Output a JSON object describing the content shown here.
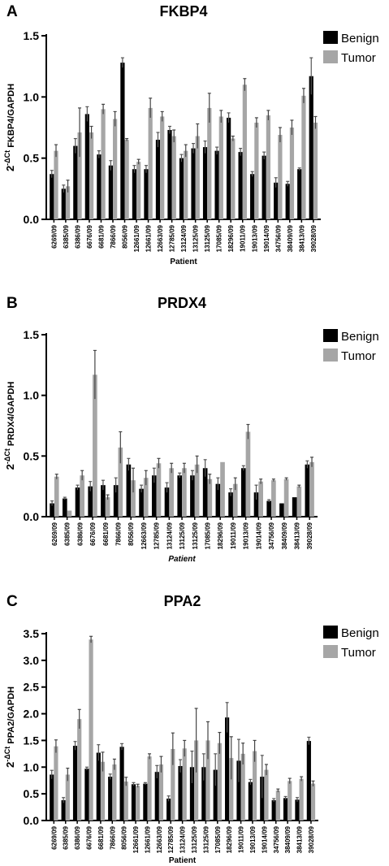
{
  "chart_data": [
    {
      "type": "bar",
      "panel": "A",
      "title": "FKBP4",
      "ylabel_prefix": "2",
      "ylabel_sup": "-ΔCt",
      "ylabel_rest": " FKBP4/GAPDH",
      "xlabel": "Patient",
      "ylim": [
        0,
        1.5
      ],
      "yticks": [
        "0.0",
        "0.5",
        "1.0",
        "1.5"
      ],
      "categories": [
        "6269/09",
        "6385/09",
        "6386/09",
        "6676/09",
        "6681/09",
        "7866/09",
        "8056/09",
        "12661/09",
        "12661/09",
        "12663/09",
        "12785/09",
        "13124/09",
        "13125/09",
        "13125/09",
        "17085/09",
        "18296/09",
        "19011/09",
        "19013/09",
        "19014/09",
        "34756/09",
        "38409/09",
        "38413/09",
        "39028/09"
      ],
      "series": [
        {
          "name": "Benign",
          "color": "#000000",
          "values": [
            0.37,
            0.25,
            0.6,
            0.86,
            0.53,
            0.44,
            1.28,
            0.41,
            0.41,
            0.65,
            0.73,
            0.5,
            0.58,
            0.59,
            0.56,
            0.83,
            0.55,
            0.37,
            0.52,
            0.3,
            0.29,
            0.41,
            1.17
          ],
          "errors": [
            0.03,
            0.03,
            0.06,
            0.06,
            0.03,
            0.04,
            0.04,
            0.03,
            0.03,
            0.06,
            0.03,
            0.03,
            0.04,
            0.05,
            0.03,
            0.04,
            0.03,
            0.02,
            0.03,
            0.04,
            0.02,
            0.01,
            0.15
          ]
        },
        {
          "name": "Tumor",
          "color": "#a6a6a6",
          "values": [
            0.56,
            0.27,
            0.71,
            0.71,
            0.9,
            0.82,
            0.65,
            0.47,
            0.91,
            0.84,
            0.68,
            0.56,
            0.68,
            0.91,
            0.84,
            0.66,
            1.1,
            0.79,
            0.85,
            0.69,
            0.75,
            1.01,
            0.79
          ]
        },
        {
          "name": "Tumor-errors",
          "color": "#a6a6a6",
          "values": [
            0.05,
            0.05,
            0.2,
            0.05,
            0.04,
            0.06,
            0.01,
            0.02,
            0.08,
            0.04,
            0.05,
            0.05,
            0.1,
            0.12,
            0.05,
            0.02,
            0.05,
            0.04,
            0.04,
            0.06,
            0.06,
            0.06,
            0.05
          ]
        }
      ],
      "legend": [
        "Benign",
        "Tumor"
      ],
      "legend_position": "top-right"
    },
    {
      "type": "bar",
      "panel": "B",
      "title": "PRDX4",
      "ylabel_prefix": "2",
      "ylabel_sup": "-ΔCt",
      "ylabel_rest": " PRDX4/GAPDH",
      "xlabel": "Patient",
      "ylim": [
        0,
        1.5
      ],
      "yticks": [
        "0.0",
        "0.5",
        "1.0",
        "1.5"
      ],
      "categories": [
        "6269/09",
        "6385/09",
        "6386/09",
        "6676/09",
        "6681/09",
        "7866/09",
        "8056/09",
        "12663/09",
        "12785/09",
        "13124/09",
        "13125/09",
        "13125/09",
        "17085/09",
        "18296/09",
        "19011/09",
        "19013/09",
        "19014/09",
        "34756/09",
        "38409/09",
        "38413/09",
        "39028/09"
      ],
      "series": [
        {
          "name": "Benign",
          "color": "#000000",
          "values": [
            0.11,
            0.15,
            0.24,
            0.25,
            0.26,
            0.26,
            0.43,
            0.23,
            0.34,
            0.24,
            0.34,
            0.34,
            0.4,
            0.27,
            0.2,
            0.4,
            0.2,
            0.13,
            0.11,
            0.16,
            0.43
          ],
          "errors": [
            0.02,
            0.01,
            0.02,
            0.04,
            0.04,
            0.06,
            0.05,
            0.03,
            0.06,
            0.04,
            0.02,
            0.04,
            0.07,
            0.05,
            0.03,
            0.02,
            0.06,
            0.01,
            0.0,
            0.0,
            0.03
          ]
        },
        {
          "name": "Tumor",
          "color": "#a6a6a6",
          "values": [
            0.33,
            0.05,
            0.34,
            1.17,
            0.16,
            0.57,
            0.3,
            0.32,
            0.44,
            0.4,
            0.4,
            0.43,
            0.31,
            0.45,
            0.27,
            0.7,
            0.29,
            0.3,
            0.31,
            0.25,
            0.45
          ]
        },
        {
          "name": "Tumor-errors",
          "color": "#a6a6a6",
          "values": [
            0.02,
            0.0,
            0.04,
            0.2,
            0.02,
            0.13,
            0.1,
            0.06,
            0.04,
            0.04,
            0.04,
            0.07,
            0.04,
            0.0,
            0.05,
            0.06,
            0.02,
            0.01,
            0.01,
            0.01,
            0.04
          ]
        }
      ],
      "legend": [
        "Benign",
        "Tumor"
      ],
      "legend_position": "top-right"
    },
    {
      "type": "bar",
      "panel": "C",
      "title": "PPA2",
      "ylabel_prefix": "2",
      "ylabel_sup": "-ΔCt",
      "ylabel_rest": " PPA2/GAPDH",
      "xlabel": "Patient",
      "ylim": [
        0,
        3.5
      ],
      "yticks": [
        "0.0",
        "0.5",
        "1.0",
        "1.5",
        "2.0",
        "2.5",
        "3.0",
        "3.5"
      ],
      "categories": [
        "6269/09",
        "6385/09",
        "6386/09",
        "6676/09",
        "6681/09",
        "7866/09",
        "8056/09",
        "12661/09",
        "12661/09",
        "12663/09",
        "12785/09",
        "13124/09",
        "13125/09",
        "13125/09",
        "17085/09",
        "18296/09",
        "19011/09",
        "19013/09",
        "19014/09",
        "34756/09",
        "38409/09",
        "38413/09",
        "39028/09"
      ],
      "series": [
        {
          "name": "Benign",
          "color": "#000000",
          "values": [
            0.86,
            0.38,
            1.4,
            0.97,
            1.27,
            0.82,
            1.38,
            0.68,
            0.69,
            0.91,
            0.41,
            1.02,
            1.0,
            1.0,
            0.95,
            1.93,
            1.12,
            0.72,
            0.82,
            0.38,
            0.42,
            0.39,
            1.49
          ],
          "errors": [
            0.08,
            0.05,
            0.08,
            0.03,
            0.15,
            0.05,
            0.06,
            0.03,
            0.02,
            0.12,
            0.05,
            0.12,
            0.3,
            0.25,
            0.3,
            0.28,
            0.4,
            0.05,
            0.4,
            0.03,
            0.03,
            0.04,
            0.07
          ]
        },
        {
          "name": "Tumor",
          "color": "#a6a6a6",
          "values": [
            1.39,
            0.86,
            1.9,
            3.39,
            1.1,
            1.05,
            0.73,
            0.65,
            1.2,
            1.05,
            1.34,
            1.35,
            1.5,
            1.5,
            1.45,
            1.17,
            1.25,
            1.3,
            0.95,
            0.56,
            0.74,
            0.78,
            0.69
          ]
        },
        {
          "name": "Tumor-errors",
          "color": "#a6a6a6",
          "values": [
            0.12,
            0.12,
            0.18,
            0.06,
            0.18,
            0.1,
            0.08,
            0.03,
            0.05,
            0.15,
            0.3,
            0.15,
            0.6,
            0.35,
            0.2,
            0.4,
            0.2,
            0.2,
            0.1,
            0.03,
            0.05,
            0.04,
            0.05
          ]
        }
      ],
      "legend": [
        "Benign",
        "Tumor"
      ],
      "legend_position": "top-right"
    }
  ]
}
